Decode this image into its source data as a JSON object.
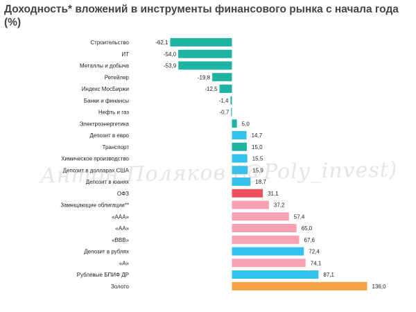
{
  "title": "Доходность* вложений в инструменты финансового рынка с начала года (%)",
  "watermark": "Антон Поляков (@Poly_invest)",
  "colors": {
    "teal": "#1fb3a4",
    "blue": "#33c1ee",
    "red": "#ee4f5f",
    "pink": "#f7a1b4",
    "orange": "#f6a044"
  },
  "chart_data": {
    "type": "bar",
    "orientation": "horizontal",
    "title": "Доходность* вложений в инструменты финансового рынка с начала года (%)",
    "categories": [
      "Строительство",
      "ИТ",
      "Металлы и добыча",
      "Ретейлер",
      "Индекс МосБиржи",
      "Банки и финансы",
      "Нефть и газ",
      "Электроэнергетика",
      "Депозит в евро",
      "Транспорт",
      "Химическое производство",
      "Депозит в долларах США",
      "Депозит в юанях",
      "ОФЗ",
      "Замещающие облигации**",
      "«ААА»",
      "«АА»",
      "«ВВВ»",
      "Депозит в рублях",
      "«А»",
      "Рублевые БПИФ ДР",
      "Золото"
    ],
    "values": [
      -62.1,
      -54.0,
      -53.9,
      -19.8,
      -12.5,
      -1.4,
      -0.7,
      5.0,
      14.7,
      15.0,
      15.5,
      15.9,
      18.7,
      31.1,
      37.2,
      57.4,
      65.0,
      67.6,
      72.4,
      74.1,
      87.1,
      136.0
    ],
    "labels": [
      "-62,1",
      "-54,0",
      "-53,9",
      "-19,8",
      "-12,5",
      "-1,4",
      "-0,7",
      "5,0",
      "14,7",
      "15,0",
      "15,5",
      "15,9",
      "18,7",
      "31,1",
      "37,2",
      "57,4",
      "65,0",
      "67,6",
      "72,4",
      "74,1",
      "87,1",
      "136,0"
    ],
    "bar_colors": [
      "teal",
      "teal",
      "teal",
      "teal",
      "teal",
      "teal",
      "teal",
      "teal",
      "blue",
      "teal",
      "blue",
      "blue",
      "blue",
      "red",
      "pink",
      "pink",
      "pink",
      "pink",
      "blue",
      "pink",
      "blue",
      "orange"
    ],
    "xlim": [
      -62.1,
      136.0
    ],
    "grid": false,
    "legend": "none"
  }
}
